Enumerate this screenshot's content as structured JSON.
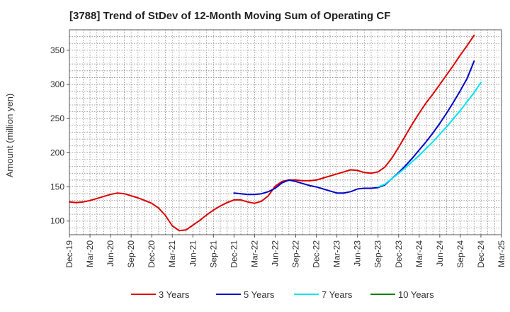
{
  "chart_data": {
    "type": "line",
    "title": "[3788]  Trend of StDev of 12-Month Moving Sum of Operating CF",
    "xlabel": "",
    "ylabel": "Amount (million yen)",
    "ylim": [
      80,
      380
    ],
    "yticks": [
      100,
      150,
      200,
      250,
      300,
      350
    ],
    "x_ticks": [
      "Dec-19",
      "Mar-20",
      "Jun-20",
      "Sep-20",
      "Dec-20",
      "Mar-21",
      "Jun-21",
      "Sep-21",
      "Dec-21",
      "Mar-22",
      "Jun-22",
      "Sep-22",
      "Dec-22",
      "Mar-23",
      "Jun-23",
      "Sep-23",
      "Dec-23",
      "Mar-24",
      "Jun-24",
      "Sep-24",
      "Dec-24",
      "Mar-25"
    ],
    "grid": true,
    "legend_position": "bottom",
    "series": [
      {
        "name": "3 Years",
        "color": "#dd0000",
        "start_index": 0,
        "values": [
          128,
          127,
          128,
          130,
          133,
          136,
          139,
          141,
          140,
          137,
          134,
          130,
          126,
          119,
          108,
          93,
          86,
          87,
          94,
          101,
          109,
          116,
          122,
          127,
          131,
          131,
          128,
          126,
          129,
          137,
          151,
          158,
          160,
          160,
          159,
          159,
          160,
          163,
          166,
          169,
          172,
          175,
          174,
          171,
          170,
          172,
          179,
          192,
          208,
          225,
          242,
          258,
          273,
          286,
          300,
          314,
          328,
          343,
          357,
          372
        ]
      },
      {
        "name": "5 Years",
        "color": "#0000cc",
        "start_index": 24,
        "values": [
          141,
          140,
          139,
          139,
          140,
          143,
          148,
          156,
          160,
          158,
          155,
          152,
          150,
          147,
          144,
          141,
          141,
          143,
          147,
          148,
          148,
          149,
          153,
          162,
          171,
          181,
          192,
          204,
          216,
          229,
          243,
          258,
          274,
          291,
          309,
          334
        ]
      },
      {
        "name": "7 Years",
        "color": "#00e5ee",
        "start_index": 45,
        "values": [
          150,
          154,
          162,
          170,
          178,
          187,
          196,
          206,
          216,
          227,
          238,
          250,
          262,
          275,
          288,
          303
        ]
      },
      {
        "name": "10 Years",
        "color": "#008000",
        "start_index": 0,
        "values": []
      }
    ]
  }
}
